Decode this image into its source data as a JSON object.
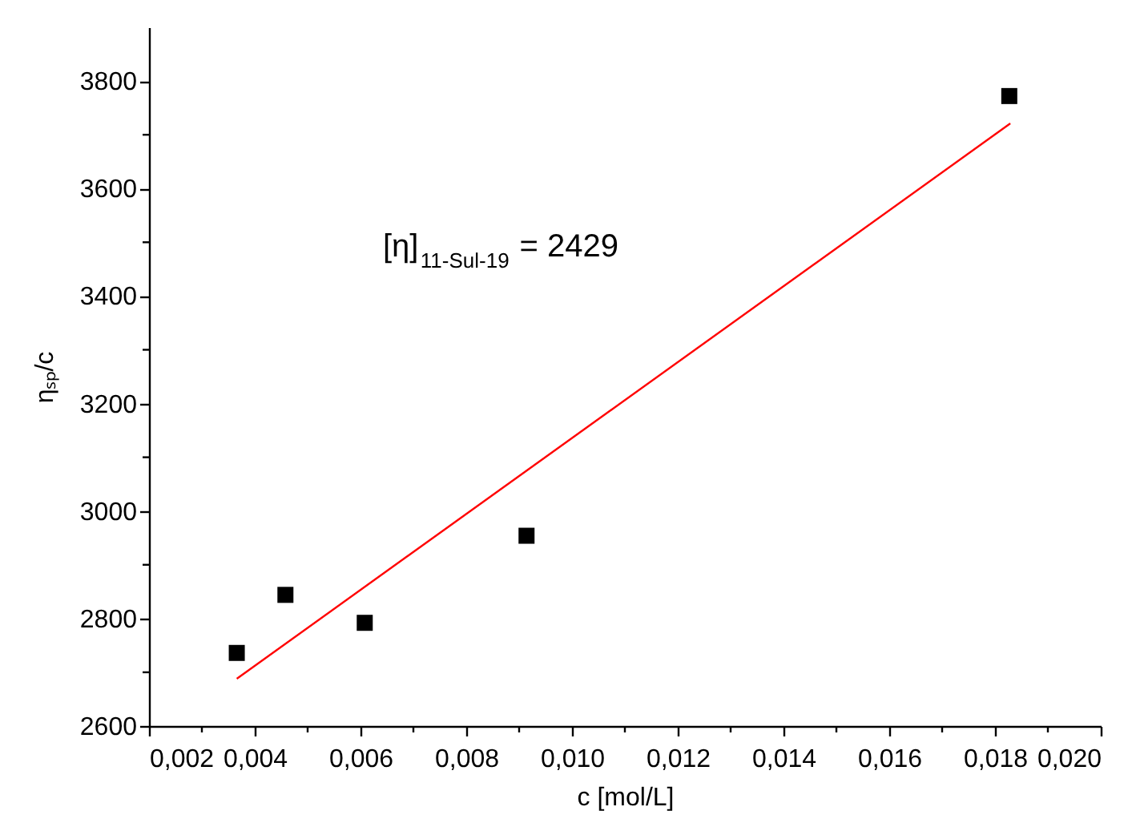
{
  "chart_data": {
    "type": "scatter",
    "xlabel": "c [mol/L]",
    "ylabel": "ηₛₚ/c",
    "annotations": [
      "[η]$_{11-Sul-19}$ = 2429"
    ],
    "xlim": [
      0.002,
      0.02
    ],
    "ylim": [
      2600,
      3900
    ],
    "xticks": [
      {
        "value": 0.002,
        "label": "0,002"
      },
      {
        "value": 0.003,
        "label": null
      },
      {
        "value": 0.004,
        "label": "0,004"
      },
      {
        "value": 0.005,
        "label": null
      },
      {
        "value": 0.006,
        "label": "0,006"
      },
      {
        "value": 0.007,
        "label": null
      },
      {
        "value": 0.008,
        "label": "0,008"
      },
      {
        "value": 0.009,
        "label": null
      },
      {
        "value": 0.01,
        "label": "0,010"
      },
      {
        "value": 0.011,
        "label": null
      },
      {
        "value": 0.012,
        "label": "0,012"
      },
      {
        "value": 0.013,
        "label": null
      },
      {
        "value": 0.014,
        "label": "0,014"
      },
      {
        "value": 0.015,
        "label": null
      },
      {
        "value": 0.016,
        "label": "0,016"
      },
      {
        "value": 0.017,
        "label": null
      },
      {
        "value": 0.018,
        "label": "0,018"
      },
      {
        "value": 0.019,
        "label": null
      },
      {
        "value": 0.02,
        "label": "0,020"
      }
    ],
    "yticks": [
      2600,
      {
        "value": 2700,
        "label": null
      },
      2800,
      {
        "value": 2900,
        "label": null
      },
      3000,
      {
        "value": 3100,
        "label": null
      },
      3200,
      {
        "value": 3300,
        "label": null
      },
      3400,
      {
        "value": 3500,
        "label": null
      },
      3600,
      {
        "value": 3700,
        "label": null
      },
      3800
    ],
    "grid": false,
    "series": [
      {
        "color": "#000000",
        "marker": "square",
        "x": [
          0.00366,
          0.00458,
          0.00608,
          0.00914,
          0.01827
        ],
        "values": [
          2736,
          2844,
          2792,
          2954,
          3772
        ]
      },
      {
        "type": "line",
        "color": "#ff0000",
        "marker": "none",
        "line_style": "solid",
        "x": [
          0.00366,
          0.01829
        ],
        "values": [
          2688,
          3721
        ]
      }
    ]
  }
}
